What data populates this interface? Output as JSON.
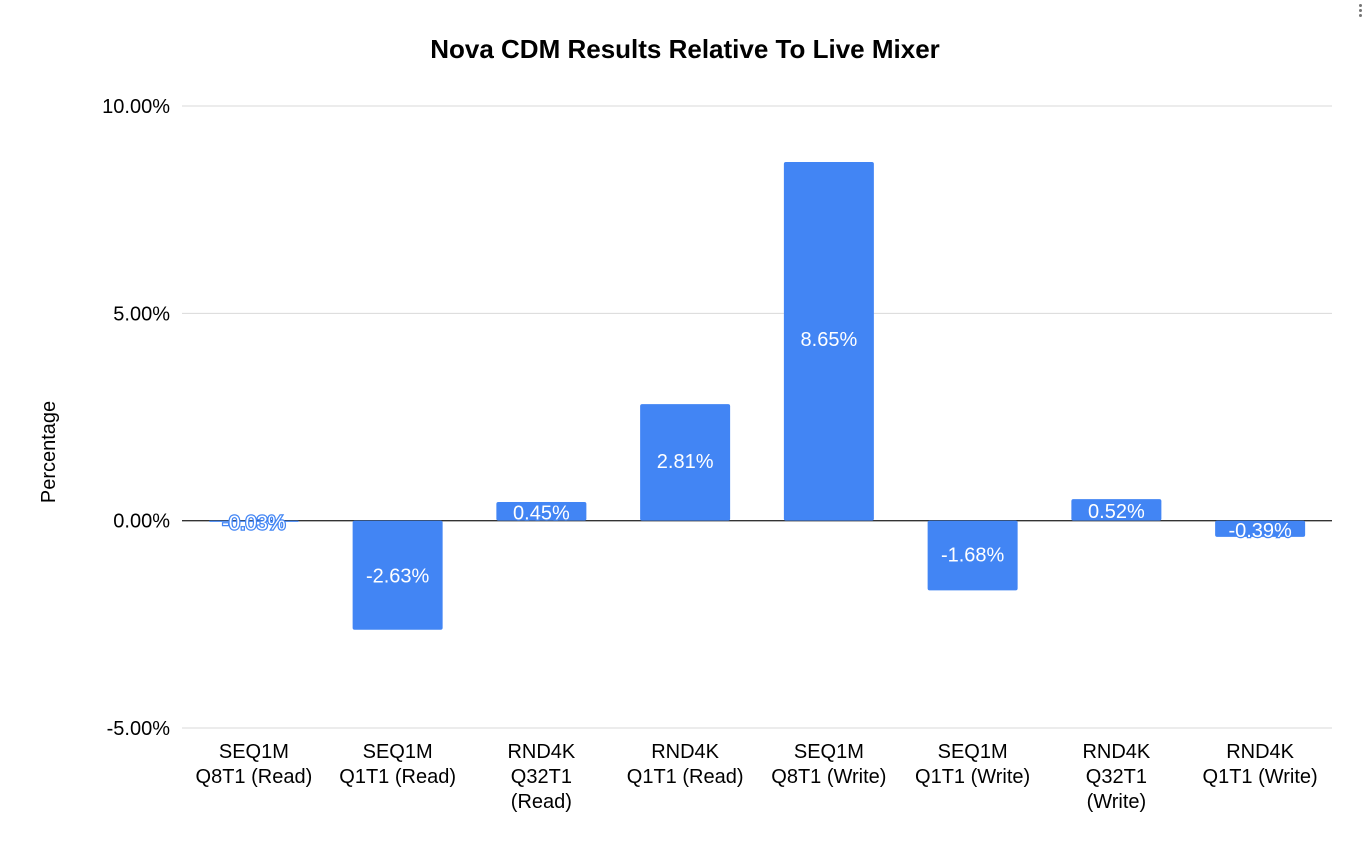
{
  "chart_data": {
    "type": "bar",
    "title": "Nova CDM Results Relative To Live Mixer",
    "xlabel": "",
    "ylabel": "Percentage",
    "ylim": [
      -5,
      10
    ],
    "yticks": [
      -5,
      0,
      5,
      10
    ],
    "ytick_labels": [
      "-5.00%",
      "0.00%",
      "5.00%",
      "10.00%"
    ],
    "categories": [
      [
        "SEQ1M",
        "Q8T1 (Read)"
      ],
      [
        "SEQ1M",
        "Q1T1 (Read)"
      ],
      [
        "RND4K",
        "Q32T1",
        "(Read)"
      ],
      [
        "RND4K",
        "Q1T1 (Read)"
      ],
      [
        "SEQ1M",
        "Q8T1 (Write)"
      ],
      [
        "SEQ1M",
        "Q1T1 (Write)"
      ],
      [
        "RND4K",
        "Q32T1",
        "(Write)"
      ],
      [
        "RND4K",
        "Q1T1 (Write)"
      ]
    ],
    "values": [
      -0.03,
      -2.63,
      0.45,
      2.81,
      8.65,
      -1.68,
      0.52,
      -0.39
    ],
    "data_labels": [
      "-0.03%",
      "-2.63%",
      "0.45%",
      "2.81%",
      "8.65%",
      "-1.68%",
      "0.52%",
      "-0.39%"
    ],
    "bar_color": "#4285f4",
    "grid": true,
    "legend": "none"
  }
}
